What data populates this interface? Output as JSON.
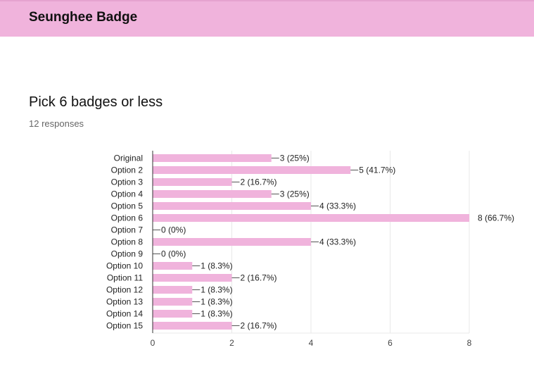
{
  "header": {
    "title": "Seunghee Badge"
  },
  "question": {
    "title": "Pick 6 badges or less",
    "responses": "12 responses"
  },
  "colors": {
    "bar": "#f0b3dc",
    "header": "#f0b3dc",
    "grid": "#e8e8e8",
    "axis": "#333333"
  },
  "chart_data": {
    "type": "bar",
    "orientation": "horizontal",
    "categories": [
      "Original",
      "Option 2",
      "Option 3",
      "Option 4",
      "Option 5",
      "Option 6",
      "Option 7",
      "Option 8",
      "Option 9",
      "Option 10",
      "Option 11",
      "Option 12",
      "Option 13",
      "Option 14",
      "Option 15"
    ],
    "values": [
      3,
      5,
      2,
      3,
      4,
      8,
      0,
      4,
      0,
      1,
      2,
      1,
      1,
      1,
      2
    ],
    "labels": [
      "3 (25%)",
      "5 (41.7%)",
      "2 (16.7%)",
      "3 (25%)",
      "4 (33.3%)",
      "8 (66.7%)",
      "0 (0%)",
      "4 (33.3%)",
      "0 (0%)",
      "1 (8.3%)",
      "2 (16.7%)",
      "1 (8.3%)",
      "1 (8.3%)",
      "1 (8.3%)",
      "2 (16.7%)"
    ],
    "xlim": [
      0,
      8
    ],
    "xticks": [
      0,
      2,
      4,
      6,
      8
    ],
    "grid": true
  }
}
